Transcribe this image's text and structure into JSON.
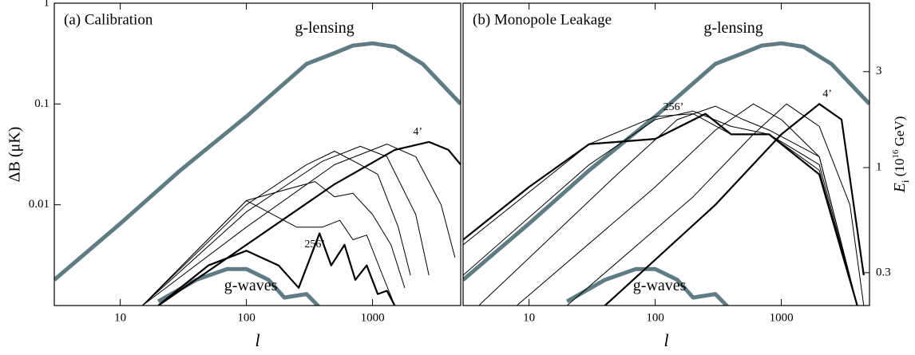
{
  "chart_data": [
    {
      "type": "line",
      "title": "(a) Calibration",
      "xlabel": "l",
      "ylabel": "ΔB (μK)",
      "xlog": true,
      "ylog": true,
      "xlim": [
        3,
        5000
      ],
      "ylim": [
        0.001,
        1
      ],
      "xticks": [
        10,
        100,
        1000
      ],
      "yticks": [
        1,
        0.1,
        0.01
      ],
      "series": [
        {
          "name": "g-lensing",
          "color": "#5f7b83",
          "linewidth": 5,
          "x": [
            3,
            10,
            30,
            100,
            200,
            300,
            500,
            700,
            1000,
            1500,
            2500,
            5000
          ],
          "values": [
            0.0018,
            0.0065,
            0.022,
            0.075,
            0.16,
            0.25,
            0.32,
            0.38,
            0.4,
            0.37,
            0.25,
            0.1
          ]
        },
        {
          "name": "g-waves",
          "color": "#5f7b83",
          "linewidth": 5,
          "x": [
            20,
            40,
            70,
            100,
            150,
            200,
            300,
            400
          ],
          "values": [
            0.0011,
            0.0018,
            0.0023,
            0.0023,
            0.0018,
            0.0012,
            0.0013,
            0.0009
          ]
        },
        {
          "name": "4’",
          "color": "#000000",
          "linewidth": 2.2,
          "x": [
            20,
            100,
            500,
            1500,
            2800,
            4000,
            5000
          ],
          "values": [
            0.001,
            0.004,
            0.016,
            0.035,
            0.042,
            0.035,
            0.025
          ]
        },
        {
          "color": "#000000",
          "linewidth": 1,
          "x": [
            15,
            100,
            500,
            1300,
            2200,
            3500,
            4500
          ],
          "values": [
            0.001,
            0.006,
            0.025,
            0.04,
            0.03,
            0.01,
            0.003
          ]
        },
        {
          "color": "#000000",
          "linewidth": 1,
          "x": [
            15,
            100,
            400,
            800,
            1300,
            2200,
            2800
          ],
          "values": [
            0.001,
            0.0085,
            0.027,
            0.038,
            0.03,
            0.008,
            0.002
          ]
        },
        {
          "color": "#000000",
          "linewidth": 1,
          "x": [
            15,
            100,
            300,
            500,
            800,
            1100,
            1600,
            2000
          ],
          "values": [
            0.001,
            0.01,
            0.025,
            0.034,
            0.025,
            0.02,
            0.006,
            0.002
          ]
        },
        {
          "color": "#000000",
          "linewidth": 1,
          "x": [
            15,
            100,
            350,
            500,
            700,
            1000,
            1400,
            1800
          ],
          "values": [
            0.001,
            0.011,
            0.017,
            0.012,
            0.013,
            0.008,
            0.004,
            0.0015
          ]
        },
        {
          "color": "#000000",
          "linewidth": 1,
          "x": [
            15,
            100,
            250,
            400,
            550,
            700,
            900,
            1200,
            1500
          ],
          "values": [
            0.001,
            0.011,
            0.006,
            0.006,
            0.007,
            0.0045,
            0.005,
            0.002,
            0.001
          ]
        },
        {
          "name": "256’",
          "color": "#000000",
          "linewidth": 2.2,
          "x": [
            20,
            50,
            100,
            180,
            260,
            380,
            470,
            600,
            730,
            900,
            1100,
            1300,
            1500
          ],
          "values": [
            0.001,
            0.0025,
            0.0035,
            0.0025,
            0.0015,
            0.0052,
            0.0025,
            0.004,
            0.0018,
            0.0025,
            0.0013,
            0.0014,
            0.001
          ]
        }
      ]
    },
    {
      "type": "line",
      "title": "(b) Monopole Leakage",
      "xlabel": "l",
      "y2label": [
        "E",
        "i",
        " (10",
        "16",
        " GeV)"
      ],
      "xlog": true,
      "ylog": true,
      "xlim": [
        3,
        5000
      ],
      "ylim": [
        0.001,
        1
      ],
      "xticks": [
        10,
        100,
        1000
      ],
      "y2lim": [
        0.206,
        6.57
      ],
      "y2ticks": [
        3,
        1,
        0.3
      ],
      "series": [
        {
          "name": "g-lensing",
          "color": "#5f7b83",
          "linewidth": 5,
          "x": [
            3,
            10,
            30,
            100,
            200,
            300,
            500,
            700,
            1000,
            1500,
            2500,
            5000
          ],
          "values": [
            0.0018,
            0.0065,
            0.022,
            0.075,
            0.16,
            0.25,
            0.32,
            0.38,
            0.4,
            0.37,
            0.25,
            0.1
          ]
        },
        {
          "name": "g-waves",
          "color": "#5f7b83",
          "linewidth": 5,
          "x": [
            20,
            40,
            70,
            100,
            150,
            200,
            300,
            400
          ],
          "values": [
            0.0011,
            0.0018,
            0.0023,
            0.0023,
            0.0018,
            0.0012,
            0.0013,
            0.0009
          ]
        },
        {
          "name": "4’",
          "color": "#000000",
          "linewidth": 2.2,
          "x": [
            40,
            300,
            1000,
            2000,
            3000,
            4500
          ],
          "values": [
            0.001,
            0.01,
            0.05,
            0.1,
            0.07,
            0.002
          ]
        },
        {
          "color": "#000000",
          "linewidth": 1,
          "x": [
            20,
            200,
            600,
            1100,
            2000,
            3500,
            4500
          ],
          "values": [
            0.001,
            0.012,
            0.05,
            0.1,
            0.06,
            0.01,
            0.001
          ]
        },
        {
          "color": "#000000",
          "linewidth": 1,
          "x": [
            8,
            100,
            300,
            600,
            1000,
            2000,
            4000
          ],
          "values": [
            0.001,
            0.015,
            0.055,
            0.1,
            0.07,
            0.03,
            0.001
          ]
        },
        {
          "color": "#000000",
          "linewidth": 1,
          "x": [
            4,
            50,
            150,
            300,
            500,
            800,
            2000,
            4000
          ],
          "values": [
            0.001,
            0.02,
            0.07,
            0.095,
            0.07,
            0.055,
            0.03,
            0.001
          ]
        },
        {
          "color": "#000000",
          "linewidth": 1,
          "x": [
            3,
            30,
            100,
            200,
            400,
            800,
            2000,
            4000
          ],
          "values": [
            0.002,
            0.025,
            0.07,
            0.085,
            0.06,
            0.05,
            0.025,
            0.001
          ]
        },
        {
          "color": "#000000",
          "linewidth": 1,
          "x": [
            3,
            30,
            100,
            200,
            400,
            800,
            2000,
            4000
          ],
          "values": [
            0.004,
            0.04,
            0.075,
            0.08,
            0.05,
            0.05,
            0.022,
            0.001
          ]
        },
        {
          "name": "256’",
          "color": "#000000",
          "linewidth": 2.2,
          "x": [
            3,
            10,
            30,
            100,
            250,
            400,
            800,
            2000,
            4000
          ],
          "values": [
            0.0045,
            0.015,
            0.04,
            0.045,
            0.08,
            0.05,
            0.05,
            0.02,
            0.001
          ]
        }
      ]
    }
  ]
}
